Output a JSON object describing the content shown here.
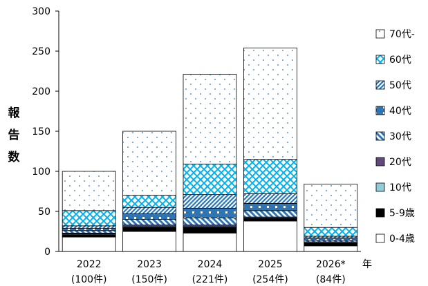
{
  "chart_data": {
    "type": "bar",
    "stacked": true,
    "ylabel": "報告数",
    "xlabel": "年",
    "ylim": [
      0,
      300
    ],
    "yticks": [
      0,
      50,
      100,
      150,
      200,
      250,
      300
    ],
    "grid": false,
    "legend_position": "right",
    "categories": [
      "2022",
      "2023",
      "2024",
      "2025",
      "2026*"
    ],
    "category_sublabels": [
      "(100件)",
      "(150件)",
      "(221件)",
      "(254件)",
      "(84件)"
    ],
    "series": [
      {
        "name": "0-4歳",
        "values": [
          18,
          25,
          23,
          38,
          7
        ],
        "color": "#ffffff",
        "pattern": "solid-white"
      },
      {
        "name": "5-9歳",
        "values": [
          3,
          5,
          7,
          3,
          3
        ],
        "color": "#000000",
        "pattern": "solid-black"
      },
      {
        "name": "10代",
        "values": [
          1,
          1,
          1,
          1,
          1
        ],
        "color": "#92cddc",
        "pattern": "solid-lightblue"
      },
      {
        "name": "20代",
        "values": [
          1,
          2,
          2,
          1,
          1
        ],
        "color": "#604a7b",
        "pattern": "solid-purple"
      },
      {
        "name": "30代",
        "values": [
          3,
          7,
          9,
          8,
          2
        ],
        "color": "#2e75b6",
        "pattern": "diagonal-down"
      },
      {
        "name": "40代",
        "values": [
          3,
          7,
          12,
          9,
          3
        ],
        "color": "#2e75b6",
        "pattern": "blocks"
      },
      {
        "name": "50代",
        "values": [
          3,
          8,
          17,
          12,
          2
        ],
        "color": "#2e75b6",
        "pattern": "diagonal-up"
      },
      {
        "name": "60代",
        "values": [
          19,
          15,
          38,
          43,
          11
        ],
        "color": "#00b0f0",
        "pattern": "crosshatch"
      },
      {
        "name": "70代-",
        "values": [
          49,
          80,
          112,
          139,
          54
        ],
        "color": "#2e75b6",
        "pattern": "dots"
      }
    ]
  }
}
